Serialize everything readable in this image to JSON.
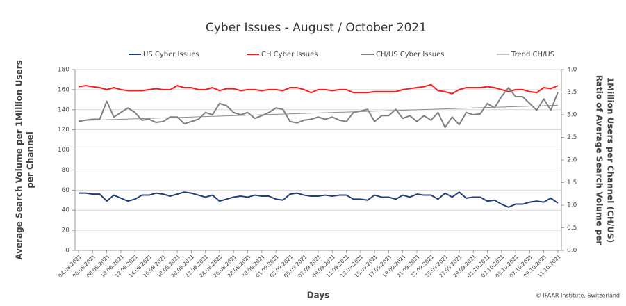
{
  "chart_data": {
    "type": "line",
    "title": "Cyber Issues - August / October 2021",
    "x_label": "Days",
    "y_label": [
      "Average Search Volume per 1Million Users",
      "per Channel"
    ],
    "y2_label": [
      "Ratio of Average Search Volume per",
      "1Million Users per Channel (CH/US)"
    ],
    "footnote": "© IFAAR Institute, Switzerland",
    "categories": [
      "04.08.2021",
      null,
      "06.08.2021",
      null,
      "08.08.2021",
      null,
      "10.08.2021",
      null,
      "12.08.2021",
      null,
      "14.08.2021",
      null,
      "16.08.2021",
      null,
      "18.08.2021",
      null,
      "20.08.2021",
      null,
      "22.08.2021",
      null,
      "24.08.2021",
      null,
      "26.08.2021",
      null,
      "28.08.2021",
      null,
      "30.08.2021",
      null,
      "01.09.2021",
      null,
      "03.09.2021",
      null,
      "05.09.2021",
      null,
      "07.09.2021",
      null,
      "09.09.2021",
      null,
      "11.09.2021",
      null,
      "13.09.2021",
      null,
      "15.09.2021",
      null,
      "17.09.2021",
      null,
      "19.09.2021",
      null,
      "21.09.2021",
      null,
      "23.09.2021",
      null,
      "25.09.2021",
      null,
      "27.09.2021",
      null,
      "29.09.2021",
      null,
      "01.10.2021",
      null,
      "03.10.2021",
      null,
      "05.10.2021",
      null,
      "07.10.2021",
      null,
      "09.10.2021",
      null,
      "11.10.2021"
    ],
    "series": [
      {
        "name": "US Cyber Issues",
        "color": "#1f3d7a",
        "width": 2,
        "values": [
          57,
          57,
          56,
          56,
          49,
          55,
          52,
          49,
          51,
          55,
          55,
          57,
          56,
          54,
          56,
          58,
          57,
          55,
          53,
          55,
          49,
          51,
          53,
          54,
          53,
          55,
          54,
          54,
          51,
          50,
          56,
          57,
          55,
          54,
          54,
          55,
          54,
          55,
          55,
          51,
          51,
          50,
          55,
          53,
          53,
          51,
          55,
          53,
          56,
          55,
          55,
          51,
          57,
          53,
          58,
          52,
          53,
          53,
          49,
          50,
          46,
          43,
          46,
          46,
          48,
          49,
          48,
          52,
          47
        ]
      },
      {
        "name": "CH Cyber Issues",
        "color": "#ff1a1a",
        "width": 2,
        "values": [
          163,
          164,
          163,
          162,
          160,
          162,
          160,
          159,
          159,
          159,
          160,
          161,
          160,
          160,
          164,
          162,
          162,
          160,
          160,
          162,
          159,
          161,
          161,
          159,
          160,
          160,
          159,
          160,
          160,
          159,
          162,
          162,
          160,
          157,
          160,
          160,
          159,
          160,
          160,
          157,
          157,
          157,
          158,
          158,
          158,
          158,
          160,
          161,
          162,
          163,
          165,
          159,
          158,
          156,
          160,
          162,
          162,
          162,
          163,
          162,
          160,
          158,
          160,
          160,
          158,
          157,
          162,
          161,
          164
        ]
      },
      {
        "name": "CH/US Cyber Issues",
        "color": "#7f7f7f",
        "width": 2,
        "axis": "y2",
        "values": [
          2.85,
          2.88,
          2.9,
          2.9,
          3.3,
          2.95,
          3.05,
          3.15,
          3.05,
          2.88,
          2.9,
          2.83,
          2.85,
          2.95,
          2.95,
          2.8,
          2.85,
          2.9,
          3.05,
          3.0,
          3.25,
          3.2,
          3.05,
          3.0,
          3.05,
          2.92,
          2.98,
          3.05,
          3.15,
          3.12,
          2.85,
          2.82,
          2.88,
          2.9,
          2.95,
          2.9,
          2.95,
          2.88,
          2.85,
          3.05,
          3.08,
          3.12,
          2.85,
          2.98,
          2.98,
          3.12,
          2.92,
          2.98,
          2.85,
          2.98,
          2.88,
          3.05,
          2.72,
          2.95,
          2.78,
          3.05,
          3.0,
          3.02,
          3.25,
          3.15,
          3.4,
          3.6,
          3.4,
          3.4,
          3.25,
          3.1,
          3.35,
          3.1,
          3.5
        ]
      },
      {
        "name": "Trend CH/US",
        "color": "#8c8c8c",
        "width": 1,
        "axis": "y2",
        "values": [
          2.87,
          2.875,
          2.88,
          2.885,
          2.89,
          2.895,
          2.9,
          2.905,
          2.91,
          2.915,
          2.92,
          2.925,
          2.93,
          2.935,
          2.94,
          2.945,
          2.95,
          2.955,
          2.96,
          2.965,
          2.97,
          2.975,
          2.98,
          2.985,
          2.99,
          2.995,
          3.0,
          3.005,
          3.01,
          3.015,
          3.02,
          3.025,
          3.03,
          3.035,
          3.04,
          3.045,
          3.05,
          3.055,
          3.06,
          3.065,
          3.07,
          3.075,
          3.08,
          3.085,
          3.09,
          3.095,
          3.1,
          3.105,
          3.11,
          3.115,
          3.12,
          3.125,
          3.13,
          3.135,
          3.14,
          3.145,
          3.15,
          3.155,
          3.16,
          3.165,
          3.17,
          3.175,
          3.18,
          3.185,
          3.19,
          3.195,
          3.2,
          3.205,
          3.21
        ]
      }
    ],
    "ylim": [
      0,
      180
    ],
    "yticks": [
      0,
      20,
      40,
      60,
      80,
      100,
      120,
      140,
      160,
      180
    ],
    "y2lim": [
      0,
      4
    ],
    "y2ticks": [
      {
        "value": 0,
        "label": "0.0"
      },
      0.5,
      {
        "value": 1,
        "label": "1.0"
      },
      1.5,
      {
        "value": 2,
        "label": "2.0"
      },
      2.5,
      {
        "value": 3,
        "label": "3.0"
      },
      3.5,
      {
        "value": 4,
        "label": "4.0"
      }
    ],
    "grid": true,
    "legend": "top"
  }
}
